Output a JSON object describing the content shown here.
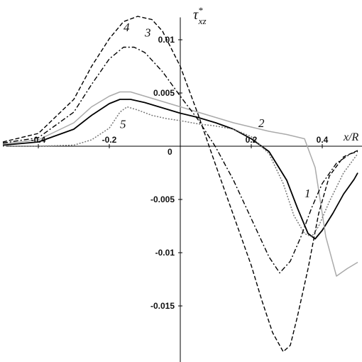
{
  "chart_data": {
    "type": "line",
    "xlabel": "x/R",
    "ylabel": "τ*xz",
    "ylabel_main": "τ",
    "ylabel_sup": "*",
    "ylabel_sub": "xz",
    "xlim": [
      -0.5,
      0.52
    ],
    "ylim": [
      -0.02,
      0.0125
    ],
    "grid": false,
    "x_ticks": [
      {
        "value": -0.4,
        "label": "-0.4"
      },
      {
        "value": -0.2,
        "label": "-0.2"
      },
      {
        "value": 0.2,
        "label": "0.2"
      },
      {
        "value": 0.4,
        "label": "0.4"
      }
    ],
    "origin_label": "0",
    "y_ticks": [
      {
        "value": 0.01,
        "label": "0.01"
      },
      {
        "value": 0.005,
        "label": "0.005"
      },
      {
        "value": -0.005,
        "label": "-0.005"
      },
      {
        "value": -0.01,
        "label": "-0.01"
      },
      {
        "value": -0.015,
        "label": "-0.015"
      }
    ],
    "series": [
      {
        "label": "1",
        "color": "#000000",
        "dash": "",
        "width": 1.8,
        "label_pos": [
          0.35,
          -0.0048
        ],
        "points": [
          [
            -0.5,
            0.0001
          ],
          [
            -0.4,
            0.0004
          ],
          [
            -0.3,
            0.0016
          ],
          [
            -0.25,
            0.0029
          ],
          [
            -0.2,
            0.004
          ],
          [
            -0.17,
            0.0044
          ],
          [
            -0.14,
            0.0044
          ],
          [
            -0.1,
            0.0041
          ],
          [
            -0.05,
            0.0036
          ],
          [
            0,
            0.0031
          ],
          [
            0.05,
            0.0027
          ],
          [
            0.1,
            0.0022
          ],
          [
            0.15,
            0.0016
          ],
          [
            0.2,
            0.0007
          ],
          [
            0.25,
            -0.0005
          ],
          [
            0.3,
            -0.0032
          ],
          [
            0.33,
            -0.0058
          ],
          [
            0.36,
            -0.0082
          ],
          [
            0.38,
            -0.0087
          ],
          [
            0.4,
            -0.0079
          ],
          [
            0.43,
            -0.0063
          ],
          [
            0.46,
            -0.0045
          ],
          [
            0.49,
            -0.0031
          ],
          [
            0.5,
            -0.0025
          ]
        ]
      },
      {
        "label": "2",
        "color": "#aaaaaa",
        "dash": "",
        "width": 1.5,
        "label_pos": [
          0.22,
          0.0018
        ],
        "points": [
          [
            -0.5,
            0.0002
          ],
          [
            -0.4,
            0.0006
          ],
          [
            -0.3,
            0.0022
          ],
          [
            -0.25,
            0.0037
          ],
          [
            -0.2,
            0.0047
          ],
          [
            -0.17,
            0.0051
          ],
          [
            -0.14,
            0.0051
          ],
          [
            -0.1,
            0.0047
          ],
          [
            -0.05,
            0.0042
          ],
          [
            0,
            0.0037
          ],
          [
            0.05,
            0.0032
          ],
          [
            0.1,
            0.0027
          ],
          [
            0.15,
            0.0022
          ],
          [
            0.2,
            0.0018
          ],
          [
            0.25,
            0.0014
          ],
          [
            0.3,
            0.0011
          ],
          [
            0.35,
            0.0007
          ],
          [
            0.38,
            -0.002
          ],
          [
            0.41,
            -0.0085
          ],
          [
            0.44,
            -0.0122
          ],
          [
            0.47,
            -0.0115
          ],
          [
            0.5,
            -0.0109
          ]
        ]
      },
      {
        "label": "3",
        "color": "#000000",
        "dash": "7 3 2 3",
        "width": 1.4,
        "label_pos": [
          -0.1,
          0.0103
        ],
        "points": [
          [
            -0.5,
            0.0003
          ],
          [
            -0.4,
            0.0008
          ],
          [
            -0.3,
            0.0032
          ],
          [
            -0.25,
            0.0058
          ],
          [
            -0.2,
            0.0082
          ],
          [
            -0.16,
            0.0093
          ],
          [
            -0.13,
            0.0093
          ],
          [
            -0.1,
            0.0088
          ],
          [
            -0.05,
            0.007
          ],
          [
            0,
            0.0047
          ],
          [
            0.05,
            0.0025
          ],
          [
            0.1,
            -0.0001
          ],
          [
            0.15,
            -0.0032
          ],
          [
            0.2,
            -0.0068
          ],
          [
            0.25,
            -0.0104
          ],
          [
            0.28,
            -0.0119
          ],
          [
            0.31,
            -0.0108
          ],
          [
            0.34,
            -0.0085
          ],
          [
            0.37,
            -0.0058
          ],
          [
            0.4,
            -0.0035
          ],
          [
            0.44,
            -0.0016
          ],
          [
            0.48,
            -0.0007
          ],
          [
            0.5,
            -0.0005
          ]
        ]
      },
      {
        "label": "4",
        "color": "#000000",
        "dash": "6 3",
        "width": 1.4,
        "label_pos": [
          -0.16,
          0.0108
        ],
        "points": [
          [
            -0.5,
            0.0004
          ],
          [
            -0.4,
            0.0012
          ],
          [
            -0.3,
            0.0044
          ],
          [
            -0.25,
            0.0075
          ],
          [
            -0.2,
            0.0101
          ],
          [
            -0.16,
            0.0117
          ],
          [
            -0.12,
            0.0122
          ],
          [
            -0.08,
            0.0119
          ],
          [
            -0.05,
            0.0108
          ],
          [
            0,
            0.0075
          ],
          [
            0.05,
            0.003
          ],
          [
            0.1,
            -0.0018
          ],
          [
            0.15,
            -0.0065
          ],
          [
            0.2,
            -0.0112
          ],
          [
            0.23,
            -0.0145
          ],
          [
            0.26,
            -0.0175
          ],
          [
            0.29,
            -0.0193
          ],
          [
            0.31,
            -0.0187
          ],
          [
            0.33,
            -0.016
          ],
          [
            0.36,
            -0.0115
          ],
          [
            0.39,
            -0.0063
          ],
          [
            0.42,
            -0.0028
          ],
          [
            0.46,
            -0.001
          ],
          [
            0.5,
            -0.0004
          ]
        ]
      },
      {
        "label": "5",
        "color": "#777777",
        "dash": "2 2",
        "width": 1.5,
        "label_pos": [
          -0.17,
          0.0017
        ],
        "points": [
          [
            -0.5,
            0
          ],
          [
            -0.4,
            0
          ],
          [
            -0.3,
            0.0001
          ],
          [
            -0.25,
            0.0006
          ],
          [
            -0.2,
            0.0017
          ],
          [
            -0.17,
            0.0032
          ],
          [
            -0.15,
            0.0037
          ],
          [
            -0.12,
            0.0034
          ],
          [
            -0.08,
            0.0029
          ],
          [
            -0.04,
            0.0026
          ],
          [
            0,
            0.0024
          ],
          [
            0.05,
            0.0021
          ],
          [
            0.1,
            0.0019
          ],
          [
            0.15,
            0.0016
          ],
          [
            0.2,
            0.0009
          ],
          [
            0.25,
            -0.0007
          ],
          [
            0.29,
            -0.0035
          ],
          [
            0.32,
            -0.0065
          ],
          [
            0.35,
            -0.0082
          ],
          [
            0.37,
            -0.0085
          ],
          [
            0.39,
            -0.0075
          ],
          [
            0.42,
            -0.0052
          ],
          [
            0.46,
            -0.0025
          ],
          [
            0.5,
            -0.0007
          ]
        ]
      }
    ]
  }
}
